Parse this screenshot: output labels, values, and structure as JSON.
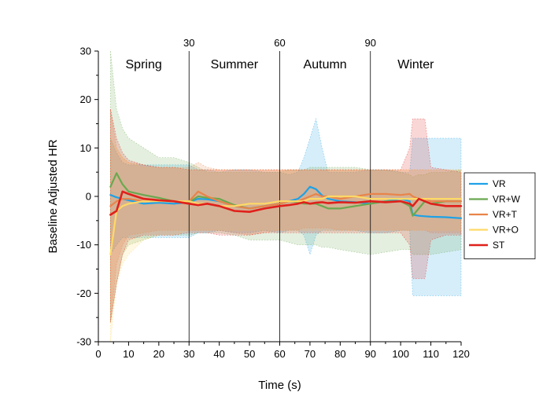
{
  "chart_data": {
    "type": "line",
    "xlabel": "Time (s)",
    "ylabel": "Baseline Adjusted HR",
    "xlim": [
      0,
      120
    ],
    "ylim": [
      -30,
      30
    ],
    "xticks": [
      0,
      10,
      20,
      30,
      40,
      50,
      60,
      70,
      80,
      90,
      100,
      110,
      120
    ],
    "yticks": [
      -30,
      -20,
      -10,
      0,
      10,
      20,
      30
    ],
    "grid": false,
    "legend_position": "right",
    "season_markers": [
      {
        "x": 30,
        "label": "30"
      },
      {
        "x": 60,
        "label": "60"
      },
      {
        "x": 90,
        "label": "90"
      }
    ],
    "season_labels": [
      {
        "x": 15,
        "label": "Spring"
      },
      {
        "x": 45,
        "label": "Summer"
      },
      {
        "x": 75,
        "label": "Autumn"
      },
      {
        "x": 105,
        "label": "Winter"
      }
    ],
    "x": [
      4,
      6,
      8,
      10,
      15,
      20,
      25,
      30,
      33,
      36,
      40,
      45,
      50,
      55,
      60,
      63,
      66,
      68,
      70,
      72,
      74,
      76,
      80,
      85,
      90,
      95,
      100,
      103,
      104,
      106,
      108,
      110,
      115,
      120
    ],
    "series": [
      {
        "name": "VR",
        "color": "#1ea1e6",
        "values": [
          0.3,
          -0.2,
          -0.5,
          -0.8,
          -1.5,
          -1.3,
          -1.5,
          -1.2,
          -0.5,
          -0.6,
          -1.0,
          -2.0,
          -2.5,
          -2.0,
          -1.5,
          -1.0,
          -0.5,
          0.5,
          2.0,
          1.5,
          0.2,
          -0.5,
          -1.0,
          -1.2,
          -1.5,
          -1.0,
          -0.5,
          -1.0,
          -3.8,
          -4.0,
          -4.1,
          -4.2,
          -4.3,
          -4.5
        ],
        "upper": [
          12,
          9,
          7,
          6.5,
          6.5,
          6.5,
          6.5,
          6.5,
          5.5,
          5.5,
          5.0,
          5.5,
          5.5,
          5.0,
          5.0,
          4.5,
          5.0,
          8.0,
          12.0,
          16.0,
          10.0,
          5.0,
          5.0,
          5.0,
          5.5,
          5.5,
          5.0,
          5.0,
          12.0,
          12.0,
          12.0,
          12.0,
          12.0,
          12.0
        ],
        "lower": [
          -12,
          -10,
          -8.5,
          -8.5,
          -8.5,
          -8.5,
          -8.5,
          -8.5,
          -7.5,
          -7.5,
          -7.0,
          -7.5,
          -7.5,
          -7.0,
          -7.5,
          -7.0,
          -7.0,
          -8.0,
          -12.0,
          -8.0,
          -7.0,
          -7.0,
          -7.0,
          -7.0,
          -7.5,
          -7.5,
          -7.0,
          -7.0,
          -20.5,
          -20.5,
          -20.5,
          -20.5,
          -20.5,
          -20.5
        ]
      },
      {
        "name": "VR+W",
        "color": "#6aa84f",
        "values": [
          2.0,
          4.8,
          2.5,
          1.0,
          0.3,
          -0.3,
          -1.0,
          -1.2,
          0.0,
          -0.3,
          -0.5,
          -1.8,
          -2.5,
          -2.0,
          -1.5,
          -1.0,
          -1.2,
          -1.5,
          -1.5,
          -1.5,
          -2.0,
          -2.5,
          -2.5,
          -2.0,
          -1.5,
          -1.0,
          -1.0,
          -2.0,
          -4.0,
          -2.5,
          -1.0,
          -1.5,
          -1.0,
          -1.0
        ],
        "upper": [
          30,
          18,
          14,
          12,
          10,
          8,
          8,
          7,
          6,
          5,
          5,
          5,
          5,
          5,
          5,
          5.5,
          5.5,
          5.5,
          6.0,
          6.0,
          6.0,
          6.0,
          6.0,
          6.0,
          5.5,
          5.5,
          5.0,
          4.5,
          4.0,
          4.5,
          4.5,
          5.0,
          5.0,
          5.5
        ],
        "lower": [
          -26,
          -18,
          -12,
          -10,
          -9,
          -8,
          -8,
          -8,
          -7.5,
          -7.5,
          -7.5,
          -8.0,
          -9.0,
          -9.0,
          -9.0,
          -9.5,
          -10.0,
          -10.0,
          -10.0,
          -10.0,
          -10.5,
          -10.5,
          -11.0,
          -11.5,
          -12.0,
          -11.5,
          -11.0,
          -11.0,
          -12.0,
          -12.0,
          -12.0,
          -12.0,
          -11.5,
          -11.0
        ]
      },
      {
        "name": "VR+T",
        "color": "#e8844a",
        "values": [
          -2.0,
          -1.0,
          -0.5,
          -0.5,
          -1.0,
          -0.8,
          -1.0,
          -1.0,
          1.0,
          0.0,
          -1.0,
          -2.0,
          -2.5,
          -2.0,
          -1.5,
          -1.0,
          -1.0,
          -0.5,
          0.0,
          0.5,
          0.0,
          0.0,
          -0.5,
          0.0,
          0.5,
          0.5,
          0.3,
          0.5,
          0.0,
          -0.5,
          -0.5,
          -1.0,
          -1.0,
          -1.0
        ],
        "upper": [
          18,
          10,
          8,
          7,
          6.5,
          6,
          6,
          6,
          7,
          6,
          5.5,
          5.5,
          5.5,
          5.5,
          5.5,
          5.5,
          5.5,
          5.5,
          5.5,
          5.5,
          5.5,
          5.5,
          5.5,
          5.5,
          5.5,
          5.5,
          5.5,
          5.5,
          5.5,
          5.5,
          5.5,
          5.5,
          5.5,
          5.5
        ],
        "lower": [
          -26,
          -14,
          -10,
          -8,
          -7.5,
          -7,
          -7,
          -7,
          -7,
          -7,
          -7,
          -7.5,
          -8.0,
          -7.5,
          -7.0,
          -7.0,
          -7.0,
          -6.5,
          -6.5,
          -6.5,
          -6.5,
          -6.5,
          -7.0,
          -7.0,
          -7.0,
          -7.0,
          -7.0,
          -7.0,
          -7.0,
          -7.0,
          -7.0,
          -7.5,
          -7.5,
          -7.5
        ]
      },
      {
        "name": "VR+O",
        "color": "#ffd966",
        "values": [
          -12,
          -3.0,
          -2.0,
          -1.5,
          -1.0,
          -1.0,
          -1.0,
          -1.0,
          -1.5,
          -1.5,
          -2.0,
          -2.0,
          -1.5,
          -1.5,
          -1.0,
          -1.0,
          -1.0,
          -1.0,
          -0.5,
          -0.5,
          -0.5,
          0.0,
          0.0,
          0.0,
          -0.5,
          -0.5,
          -0.5,
          -0.5,
          -0.5,
          -0.5,
          -0.5,
          -0.5,
          -0.5,
          -0.5
        ],
        "upper": [
          12,
          10,
          8,
          7,
          6,
          6,
          6,
          5.5,
          5.5,
          5.5,
          5.5,
          5.5,
          5.5,
          5.5,
          5.5,
          5.5,
          5.5,
          5.5,
          5.5,
          5.5,
          5.5,
          5.5,
          5.5,
          5.5,
          5.5,
          5.5,
          5.5,
          5.5,
          5.5,
          5.5,
          5.5,
          5.5,
          5.5,
          5.5
        ],
        "lower": [
          -30,
          -18,
          -14,
          -12,
          -9,
          -8,
          -8,
          -7,
          -7,
          -7,
          -7,
          -7,
          -7,
          -7,
          -7,
          -7,
          -7,
          -7,
          -7,
          -7,
          -7,
          -7,
          -7,
          -7,
          -7,
          -7,
          -7,
          -7,
          -7,
          -7,
          -7,
          -7,
          -7,
          -7
        ]
      },
      {
        "name": "ST",
        "color": "#e0201b",
        "values": [
          -3.8,
          -3.0,
          1.0,
          0.5,
          -0.5,
          -0.8,
          -1.0,
          -1.5,
          -1.8,
          -1.5,
          -2.0,
          -3.0,
          -3.2,
          -2.5,
          -2.0,
          -1.8,
          -1.5,
          -1.2,
          -1.5,
          -1.3,
          -1.2,
          -1.4,
          -1.2,
          -1.3,
          -1.0,
          -1.2,
          -1.0,
          -1.5,
          -2.0,
          -0.5,
          -1.0,
          -1.5,
          -2.0,
          -2.0
        ],
        "upper": [
          18,
          12,
          9,
          7.5,
          6.5,
          6,
          6,
          5.5,
          5.5,
          5.5,
          5.5,
          5.5,
          5.5,
          5.5,
          5.5,
          5.5,
          5.5,
          5.5,
          5.5,
          5.5,
          5.5,
          5.5,
          5.5,
          5.5,
          5.5,
          5.5,
          5.5,
          10.0,
          16.0,
          16.0,
          16.0,
          6.0,
          5.5,
          5.0
        ],
        "lower": [
          -26,
          -18,
          -12,
          -9,
          -8,
          -8,
          -8,
          -7.5,
          -7.5,
          -7.5,
          -8,
          -8,
          -8,
          -7.5,
          -7.5,
          -7.5,
          -7.5,
          -7.5,
          -7.5,
          -7.5,
          -7.5,
          -7.5,
          -7.5,
          -7.5,
          -7.5,
          -7.5,
          -7.5,
          -10.0,
          -17.0,
          -17.0,
          -17.0,
          -9.0,
          -8.0,
          -8.0
        ]
      }
    ]
  }
}
